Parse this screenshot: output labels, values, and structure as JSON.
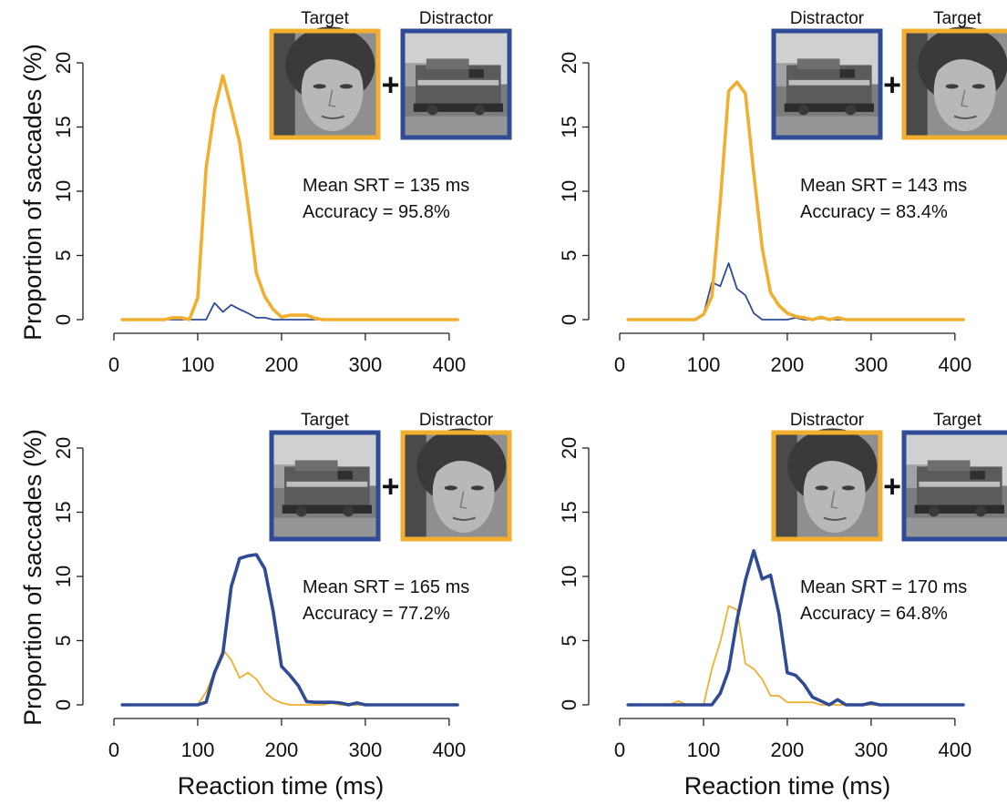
{
  "colors": {
    "face": "#f2ae2f",
    "train": "#2f4b95"
  },
  "axis_labels": {
    "x": "Reaction time (ms)",
    "y": "Proportion of saccades (%)"
  },
  "chart_data": [
    {
      "type": "line",
      "xlim": [
        0,
        420
      ],
      "ylim": [
        0,
        20
      ],
      "x_ticks": [
        "0",
        "100",
        "200",
        "300",
        "400"
      ],
      "y_ticks": [
        "0",
        "5",
        "10",
        "15",
        "20"
      ],
      "stimuli": [
        {
          "label": "Target",
          "image": "face",
          "color": "#f2ae2f"
        },
        {
          "label": "Distractor",
          "image": "train",
          "color": "#2f4b95"
        }
      ],
      "plus": "+",
      "stats": [
        "Mean SRT = 135 ms",
        "Accuracy = 95.8%"
      ],
      "series": [
        {
          "color": "#f2ae2f",
          "bold": true,
          "x": [
            10,
            20,
            30,
            40,
            50,
            60,
            70,
            80,
            90,
            100,
            110,
            120,
            130,
            140,
            150,
            160,
            170,
            180,
            190,
            200,
            210,
            220,
            230,
            240,
            250,
            260,
            270,
            280,
            290,
            300,
            310,
            320,
            330,
            340,
            350,
            360,
            370,
            380,
            390,
            400,
            410
          ],
          "y": [
            0,
            0,
            0,
            0,
            0,
            0,
            0.15,
            0.15,
            0,
            1.7,
            11.8,
            16.3,
            19.0,
            16.5,
            13.8,
            8.9,
            3.6,
            1.8,
            0.8,
            0.2,
            0.35,
            0.35,
            0.35,
            0.1,
            0,
            0,
            0,
            0,
            0,
            0,
            0,
            0,
            0,
            0,
            0,
            0,
            0,
            0,
            0,
            0,
            0
          ]
        },
        {
          "color": "#2f4b95",
          "bold": false,
          "x": [
            10,
            20,
            30,
            40,
            50,
            60,
            70,
            80,
            90,
            100,
            110,
            120,
            130,
            140,
            150,
            160,
            170,
            180,
            190,
            200,
            210,
            220,
            230,
            240,
            250,
            260,
            270,
            280,
            290,
            300,
            310,
            320,
            330,
            340,
            350,
            360,
            370,
            380,
            390,
            400,
            410
          ],
          "y": [
            0,
            0,
            0,
            0,
            0,
            0,
            0,
            0,
            0,
            0,
            0,
            1.3,
            0.6,
            1.15,
            0.8,
            0.5,
            0.15,
            0.15,
            0,
            0,
            0,
            0,
            0,
            0,
            0,
            0,
            0,
            0,
            0,
            0,
            0,
            0,
            0,
            0,
            0,
            0,
            0,
            0,
            0,
            0,
            0
          ]
        }
      ]
    },
    {
      "type": "line",
      "xlim": [
        0,
        420
      ],
      "ylim": [
        0,
        20
      ],
      "x_ticks": [
        "0",
        "100",
        "200",
        "300",
        "400"
      ],
      "y_ticks": [
        "0",
        "5",
        "10",
        "15",
        "20"
      ],
      "stimuli": [
        {
          "label": "Distractor",
          "image": "train",
          "color": "#2f4b95"
        },
        {
          "label": "Target",
          "image": "face",
          "color": "#f2ae2f"
        }
      ],
      "plus": "+",
      "stats": [
        "Mean SRT = 143 ms",
        "Accuracy = 83.4%"
      ],
      "series": [
        {
          "color": "#f2ae2f",
          "bold": true,
          "x": [
            10,
            20,
            30,
            40,
            50,
            60,
            70,
            80,
            90,
            100,
            110,
            120,
            130,
            140,
            150,
            160,
            170,
            180,
            190,
            200,
            210,
            220,
            230,
            240,
            250,
            260,
            270,
            280,
            290,
            300,
            310,
            320,
            330,
            340,
            350,
            360,
            370,
            380,
            390,
            400,
            410
          ],
          "y": [
            0,
            0,
            0,
            0,
            0,
            0,
            0,
            0,
            0,
            0.4,
            1.8,
            9.2,
            17.8,
            18.5,
            17.6,
            11.4,
            5.6,
            2.1,
            1.1,
            0.5,
            0.25,
            0.15,
            0,
            0.2,
            0,
            0.15,
            0,
            0,
            0,
            0,
            0,
            0,
            0,
            0,
            0,
            0,
            0,
            0,
            0,
            0,
            0
          ]
        },
        {
          "color": "#2f4b95",
          "bold": false,
          "x": [
            10,
            20,
            30,
            40,
            50,
            60,
            70,
            80,
            90,
            100,
            110,
            120,
            130,
            140,
            150,
            160,
            170,
            180,
            190,
            200,
            210,
            220,
            230,
            240,
            250,
            260,
            270,
            280,
            290,
            300,
            310,
            320,
            330,
            340,
            350,
            360,
            370,
            380,
            390,
            400,
            410
          ],
          "y": [
            0,
            0,
            0,
            0,
            0,
            0,
            0,
            0,
            0,
            0.4,
            2.9,
            2.6,
            4.4,
            2.4,
            1.9,
            0.5,
            0,
            0,
            0,
            0,
            0.15,
            0,
            0,
            0.1,
            0,
            0,
            0,
            0,
            0,
            0,
            0,
            0,
            0,
            0,
            0,
            0,
            0,
            0,
            0,
            0,
            0
          ]
        }
      ]
    },
    {
      "type": "line",
      "xlim": [
        0,
        420
      ],
      "ylim": [
        0,
        20
      ],
      "x_ticks": [
        "0",
        "100",
        "200",
        "300",
        "400"
      ],
      "y_ticks": [
        "0",
        "5",
        "10",
        "15",
        "20"
      ],
      "stimuli": [
        {
          "label": "Target",
          "image": "train",
          "color": "#2f4b95"
        },
        {
          "label": "Distractor",
          "image": "face",
          "color": "#f2ae2f"
        }
      ],
      "plus": "+",
      "stats": [
        "Mean SRT = 165 ms",
        "Accuracy = 77.2%"
      ],
      "series": [
        {
          "color": "#f2ae2f",
          "bold": false,
          "x": [
            10,
            20,
            30,
            40,
            50,
            60,
            70,
            80,
            90,
            100,
            110,
            120,
            130,
            140,
            150,
            160,
            170,
            180,
            190,
            200,
            210,
            220,
            230,
            240,
            250,
            260,
            270,
            280,
            290,
            300,
            310,
            320,
            330,
            340,
            350,
            360,
            370,
            380,
            390,
            400,
            410
          ],
          "y": [
            0,
            0,
            0,
            0,
            0,
            0,
            0,
            0,
            0,
            0,
            1.0,
            2.6,
            4.3,
            3.5,
            2.1,
            2.5,
            2.0,
            1.0,
            0.45,
            0.15,
            0,
            0,
            0,
            0,
            0,
            0.15,
            0,
            0,
            0,
            0,
            0,
            0,
            0,
            0,
            0,
            0,
            0,
            0,
            0,
            0,
            0
          ]
        },
        {
          "color": "#2f4b95",
          "bold": true,
          "x": [
            10,
            20,
            30,
            40,
            50,
            60,
            70,
            80,
            90,
            100,
            110,
            120,
            130,
            140,
            150,
            160,
            170,
            180,
            190,
            200,
            210,
            220,
            230,
            240,
            250,
            260,
            270,
            280,
            290,
            300,
            310,
            320,
            330,
            340,
            350,
            360,
            370,
            380,
            390,
            400,
            410
          ],
          "y": [
            0,
            0,
            0,
            0,
            0,
            0,
            0,
            0,
            0,
            0,
            0.2,
            2.5,
            4.0,
            9.2,
            11.4,
            11.6,
            11.7,
            10.6,
            7.3,
            3.0,
            2.3,
            1.5,
            0.25,
            0.2,
            0.2,
            0.2,
            0.15,
            0,
            0.15,
            0,
            0,
            0,
            0,
            0,
            0,
            0,
            0,
            0,
            0,
            0,
            0
          ]
        }
      ]
    },
    {
      "type": "line",
      "xlim": [
        0,
        420
      ],
      "ylim": [
        0,
        20
      ],
      "x_ticks": [
        "0",
        "100",
        "200",
        "300",
        "400"
      ],
      "y_ticks": [
        "0",
        "5",
        "10",
        "15",
        "20"
      ],
      "stimuli": [
        {
          "label": "Distractor",
          "image": "face",
          "color": "#f2ae2f"
        },
        {
          "label": "Target",
          "image": "train",
          "color": "#2f4b95"
        }
      ],
      "plus": "+",
      "stats": [
        "Mean SRT = 170 ms",
        "Accuracy = 64.8%"
      ],
      "series": [
        {
          "color": "#f2ae2f",
          "bold": false,
          "x": [
            10,
            20,
            30,
            40,
            50,
            60,
            70,
            80,
            90,
            100,
            110,
            120,
            130,
            140,
            150,
            160,
            170,
            180,
            190,
            200,
            210,
            220,
            230,
            240,
            250,
            260,
            270,
            280,
            290,
            300,
            310,
            320,
            330,
            340,
            350,
            360,
            370,
            380,
            390,
            400,
            410
          ],
          "y": [
            0,
            0,
            0,
            0,
            0,
            0,
            0.3,
            0,
            0,
            0,
            2.8,
            4.9,
            7.7,
            7.4,
            3.2,
            2.8,
            2.0,
            0.7,
            0.7,
            0.2,
            0.2,
            0.2,
            0.2,
            0,
            0,
            0,
            0,
            0,
            0,
            0,
            0,
            0,
            0,
            0,
            0,
            0,
            0,
            0,
            0,
            0,
            0
          ]
        },
        {
          "color": "#2f4b95",
          "bold": true,
          "x": [
            10,
            20,
            30,
            40,
            50,
            60,
            70,
            80,
            90,
            100,
            110,
            120,
            130,
            140,
            150,
            160,
            170,
            180,
            190,
            200,
            210,
            220,
            230,
            240,
            250,
            260,
            270,
            280,
            290,
            300,
            310,
            320,
            330,
            340,
            350,
            360,
            370,
            380,
            390,
            400,
            410
          ],
          "y": [
            0,
            0,
            0,
            0,
            0,
            0,
            0,
            0,
            0,
            0,
            0,
            0.9,
            2.7,
            6.6,
            9.7,
            12.0,
            9.8,
            10.1,
            7.1,
            2.5,
            2.3,
            1.6,
            0.6,
            0.3,
            0,
            0.4,
            0,
            0,
            0,
            0.15,
            0,
            0,
            0,
            0,
            0,
            0,
            0,
            0,
            0,
            0,
            0
          ]
        }
      ]
    }
  ]
}
